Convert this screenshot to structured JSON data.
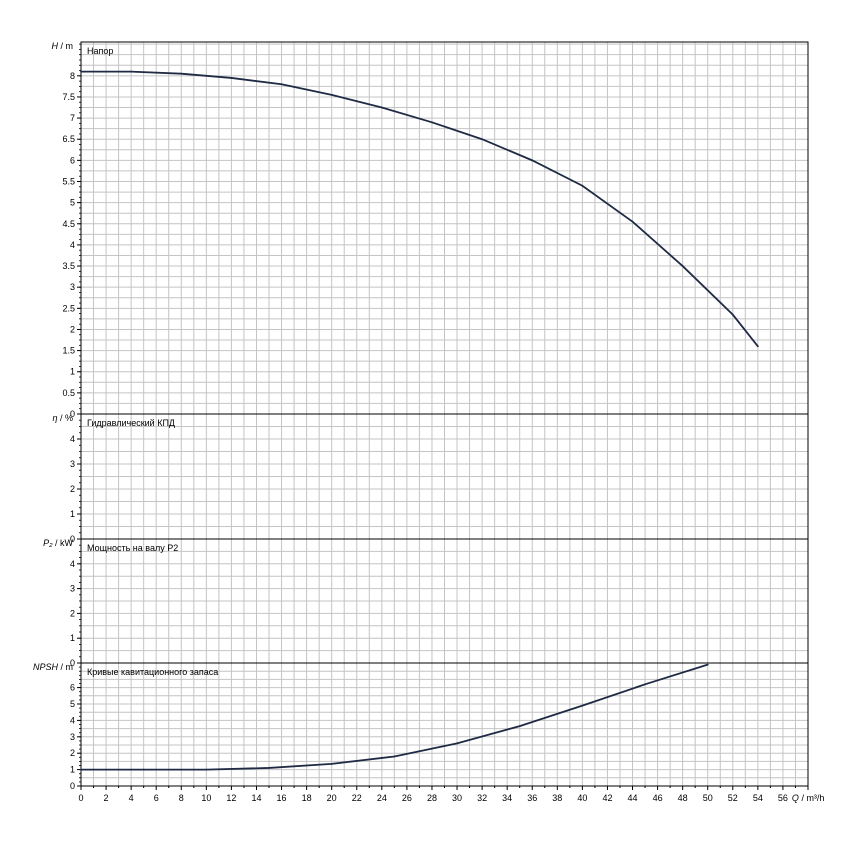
{
  "chart_data": {
    "type": "line",
    "x_axis": {
      "label_symbol": "Q",
      "label_unit": "m³/h",
      "range": [
        0,
        58
      ],
      "ticks": [
        "0",
        "2",
        "4",
        "6",
        "8",
        "10",
        "12",
        "14",
        "16",
        "18",
        "20",
        "22",
        "24",
        "26",
        "28",
        "30",
        "32",
        "34",
        "36",
        "38",
        "40",
        "42",
        "44",
        "46",
        "48",
        "50",
        "52",
        "54",
        "56"
      ]
    },
    "panels": [
      {
        "id": "head",
        "title": "Напор",
        "y_symbol": "H",
        "y_unit": "m",
        "ylim": [
          0,
          8.8
        ],
        "yticks": [
          "0",
          "0.5",
          "1",
          "1.5",
          "2",
          "2.5",
          "3",
          "3.5",
          "4",
          "4.5",
          "5",
          "5.5",
          "6",
          "6.5",
          "7",
          "7.5",
          "8"
        ],
        "series": [
          {
            "x": [
              0,
              4,
              8,
              12,
              16,
              20,
              24,
              28,
              32,
              36,
              40,
              44,
              48,
              52,
              54
            ],
            "y": [
              8.1,
              8.1,
              8.05,
              7.95,
              7.8,
              7.55,
              7.25,
              6.9,
              6.5,
              6.0,
              5.4,
              4.55,
              3.5,
              2.35,
              1.6
            ]
          }
        ]
      },
      {
        "id": "efficiency",
        "title": "Гидравлический КПД",
        "y_symbol": "η",
        "y_unit": "%",
        "ylim": [
          0,
          5
        ],
        "yticks": [
          "0",
          "1",
          "2",
          "3",
          "4"
        ],
        "series": []
      },
      {
        "id": "power",
        "title": "Мощность на валу P2",
        "y_symbol": "P₂",
        "y_unit": "kW",
        "ylim": [
          0,
          5
        ],
        "yticks": [
          "0",
          "1",
          "2",
          "3",
          "4"
        ],
        "series": []
      },
      {
        "id": "npsh",
        "title": "Кривые кавитационного запаса",
        "y_symbol": "NPSH",
        "y_unit": "m",
        "ylim": [
          0,
          7.5
        ],
        "yticks": [
          "0",
          "1",
          "2",
          "3",
          "4",
          "5",
          "6"
        ],
        "series": [
          {
            "x": [
              0,
              5,
              10,
              15,
              20,
              25,
              30,
              35,
              40,
              45,
              50
            ],
            "y": [
              1.0,
              1.0,
              1.0,
              1.1,
              1.35,
              1.8,
              2.6,
              3.65,
              4.9,
              6.2,
              7.4
            ]
          }
        ]
      }
    ],
    "grid": true,
    "colors": {
      "curve": "#1f2a44",
      "grid": "#c4c4c4",
      "frame": "#000000"
    }
  }
}
